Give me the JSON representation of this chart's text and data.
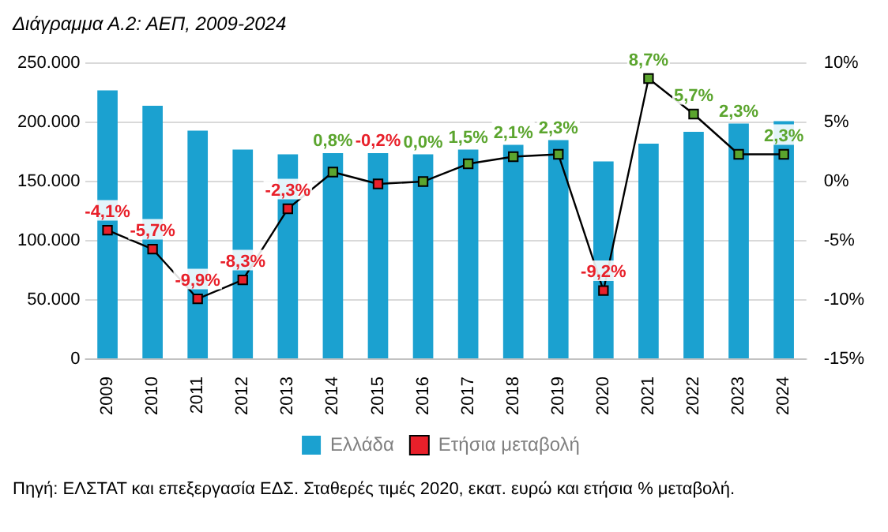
{
  "chart_data": {
    "type": "bar",
    "title": "Διάγραμμα Α.2: ΑΕΠ, 2009-2024",
    "categories": [
      "2009",
      "2010",
      "2011",
      "2012",
      "2013",
      "2014",
      "2015",
      "2016",
      "2017",
      "2018",
      "2019",
      "2020",
      "2021",
      "2022",
      "2023",
      "2024"
    ],
    "series": [
      {
        "name": "Ελλάδα",
        "color": "#1ba1d0",
        "values": [
          227000,
          214000,
          193000,
          177000,
          173000,
          174000,
          174000,
          173000,
          177000,
          181000,
          185000,
          167000,
          182000,
          192000,
          199000,
          201000
        ]
      },
      {
        "name": "Ετήσια μεταβολή",
        "type": "line",
        "axis": "y2",
        "color": "#000000",
        "marker": "square",
        "values": [
          -4.1,
          -5.7,
          -9.9,
          -8.3,
          -2.3,
          0.8,
          -0.2,
          0.0,
          1.5,
          2.1,
          2.3,
          -9.2,
          8.7,
          5.7,
          2.3,
          2.3
        ],
        "colors": [
          "#e8202a",
          "#e8202a",
          "#e8202a",
          "#e8202a",
          "#e8202a",
          "#5ba52e",
          "#e8202a",
          "#5ba52e",
          "#5ba52e",
          "#5ba52e",
          "#5ba52e",
          "#e8202a",
          "#5ba52e",
          "#5ba52e",
          "#5ba52e",
          "#5ba52e"
        ],
        "value_labels": [
          "-4,1%",
          "-5,7%",
          "-9,9%",
          "-8,3%",
          "-2,3%",
          "0,8%",
          "-0,2%",
          "0,0%",
          "1,5%",
          "2,1%",
          "2,3%",
          "-9,2%",
          "8,7%",
          "5,7%",
          "2,3%",
          "2,3%"
        ]
      }
    ],
    "ylim": [
      0,
      250000
    ],
    "yticks": [
      0,
      {
        "value": 50000,
        "label": "50.000"
      },
      {
        "value": 100000,
        "label": "100.000"
      },
      {
        "value": 150000,
        "label": "150.000"
      },
      {
        "value": 200000,
        "label": "200.000"
      },
      {
        "value": 250000,
        "label": "250.000"
      }
    ],
    "y2lim": [
      -15,
      10
    ],
    "y2ticks": [
      {
        "value": -15,
        "label": "-15%"
      },
      {
        "value": -10,
        "label": "-10%"
      },
      {
        "value": -5,
        "label": "-5%"
      },
      {
        "value": 0,
        "label": "0%"
      },
      {
        "value": 5,
        "label": "5%"
      },
      {
        "value": 10,
        "label": "10%"
      }
    ],
    "grid": "y",
    "legend": "bottom",
    "annotations": [
      "Πηγή: ΕΛΣΤΑΤ και επεξεργασία ΕΔΣ. Σταθερές τιμές 2020, εκατ. ευρώ και ετήσια % μεταβολή."
    ]
  }
}
